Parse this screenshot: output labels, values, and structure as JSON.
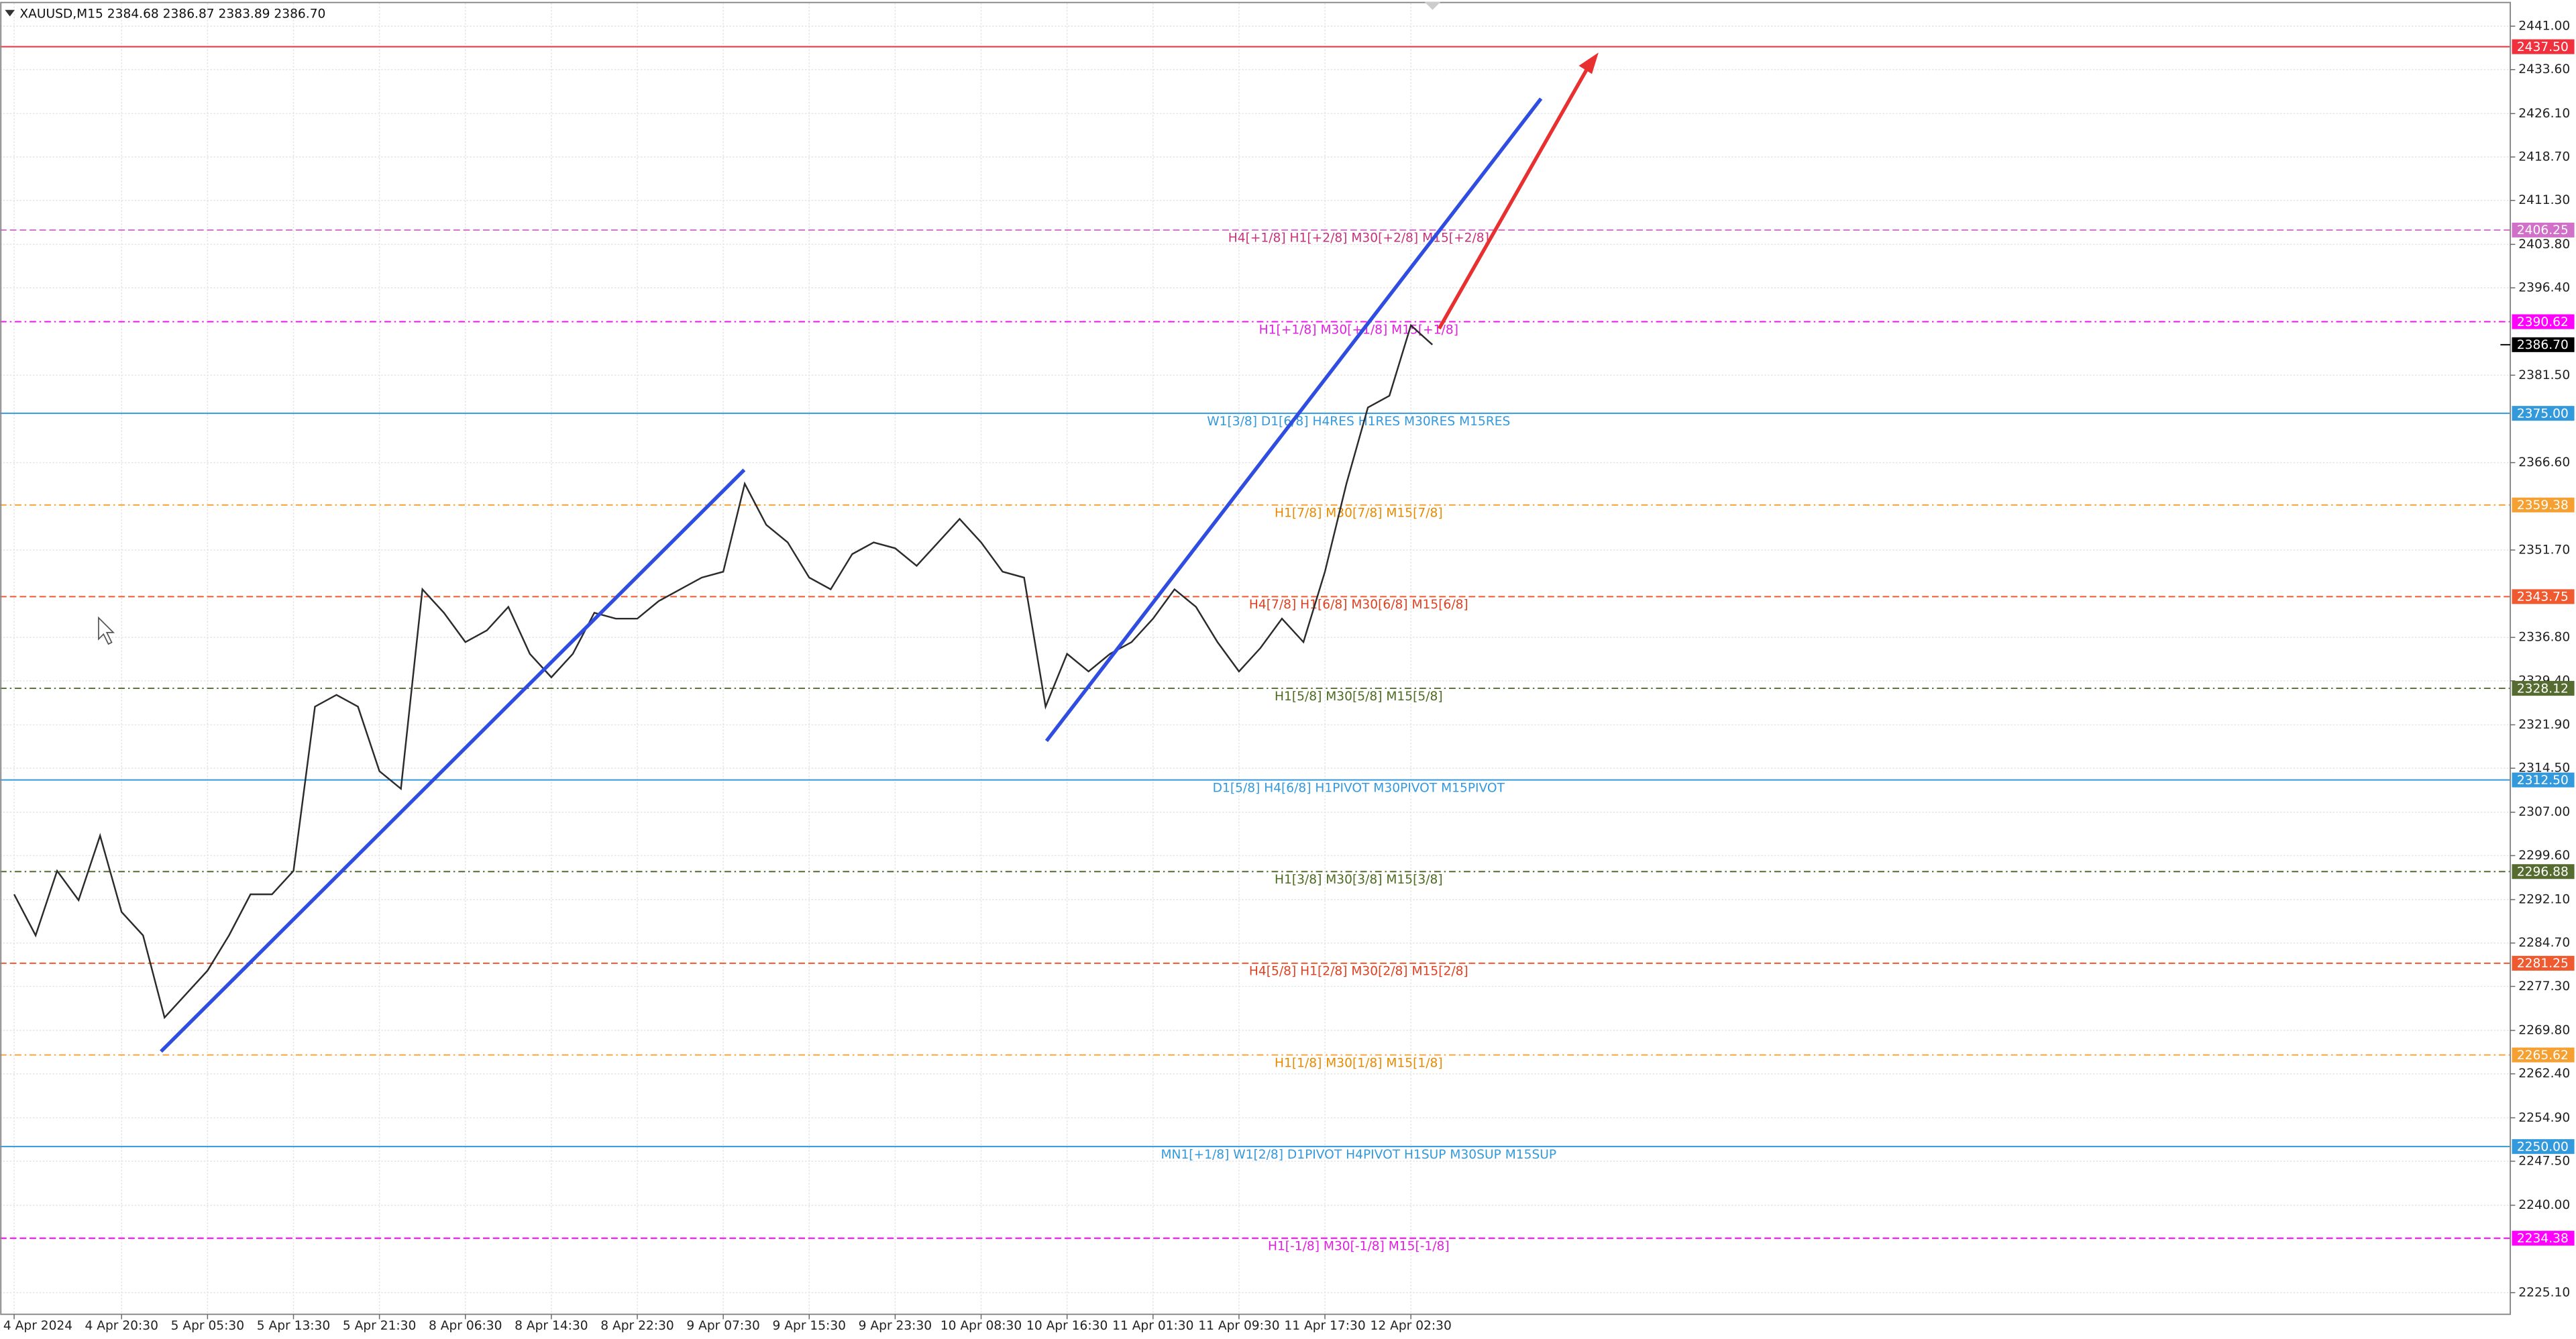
{
  "chart_data": {
    "type": "line",
    "title": "XAUUSD,M15  2384.68 2386.87 2383.89 2386.70",
    "color": "#2b2b2b",
    "grid": true,
    "categories": [
      "4 Apr 2024",
      null,
      null,
      null,
      null,
      "4 Apr 20:30",
      null,
      null,
      null,
      "5 Apr 05:30",
      null,
      null,
      null,
      "5 Apr 13:30",
      null,
      null,
      null,
      "5 Apr 21:30",
      null,
      null,
      null,
      "8 Apr 06:30",
      null,
      null,
      null,
      "8 Apr 14:30",
      null,
      null,
      null,
      "8 Apr 22:30",
      null,
      null,
      null,
      "9 Apr 07:30",
      null,
      null,
      null,
      "9 Apr 15:30",
      null,
      null,
      null,
      "9 Apr 23:30",
      null,
      null,
      null,
      "10 Apr 08:30",
      null,
      null,
      null,
      "10 Apr 16:30",
      null,
      null,
      null,
      "11 Apr 01:30",
      null,
      null,
      null,
      "11 Apr 09:30",
      null,
      null,
      null,
      "11 Apr 17:30",
      null,
      null,
      null,
      "12 Apr 02:30",
      null
    ],
    "values": [
      2293,
      2286,
      2297,
      2292,
      2303,
      2290,
      2286,
      2272,
      2276,
      2280,
      2286,
      2293,
      2293,
      2297,
      2325,
      2327,
      2325,
      2314,
      2311,
      2345,
      2341,
      2336,
      2338,
      2342,
      2334,
      2330,
      2334,
      2341,
      2340,
      2340,
      2343,
      2345,
      2347,
      2348,
      2363,
      2356,
      2353,
      2347,
      2345,
      2351,
      2353,
      2352,
      2349,
      2353,
      2357,
      2353,
      2348,
      2347,
      2325,
      2334,
      2331,
      2334,
      2336,
      2340,
      2345,
      2342,
      2336,
      2331,
      2335,
      2340,
      2336,
      2348,
      2363,
      2376,
      2378,
      2390,
      2386.7
    ],
    "ylim": [
      2221.4,
      2444.9
    ],
    "yticks": [
      {
        "value": 2441,
        "label": "2441.00"
      },
      {
        "value": 2433.6,
        "label": "2433.60"
      },
      {
        "value": 2426.1,
        "label": "2426.10"
      },
      {
        "value": 2418.7,
        "label": "2418.70"
      },
      {
        "value": 2411.3,
        "label": "2411.30"
      },
      {
        "value": 2403.8,
        "label": "2403.80"
      },
      {
        "value": 2396.4,
        "label": "2396.40"
      },
      {
        "value": 2381.5,
        "label": "2381.50"
      },
      {
        "value": 2366.6,
        "label": "2366.60"
      },
      {
        "value": 2351.7,
        "label": "2351.70"
      },
      {
        "value": 2336.8,
        "label": "2336.80"
      },
      {
        "value": 2329.4,
        "label": "2329.40"
      },
      {
        "value": 2321.9,
        "label": "2321.90"
      },
      {
        "value": 2314.5,
        "label": "2314.50"
      },
      {
        "value": 2307,
        "label": "2307.00"
      },
      {
        "value": 2299.6,
        "label": "2299.60"
      },
      {
        "value": 2292.1,
        "label": "2292.10"
      },
      {
        "value": 2284.7,
        "label": "2284.70"
      },
      {
        "value": 2277.3,
        "label": "2277.30"
      },
      {
        "value": 2269.8,
        "label": "2269.80"
      },
      {
        "value": 2262.4,
        "label": "2262.40"
      },
      {
        "value": 2254.9,
        "label": "2254.90"
      },
      {
        "value": 2247.5,
        "label": "2247.50"
      },
      {
        "value": 2240,
        "label": "2240.00"
      },
      {
        "value": 2225.1,
        "label": "2225.10"
      }
    ],
    "levels": [
      {
        "price": {
          "value": 2437.5,
          "label": "2437.50"
        },
        "color": "#f0303c",
        "dash": "none"
      },
      {
        "price": {
          "value": 2406.25,
          "label": "2406.25"
        },
        "text": "H4[+1/8] H1[+2/8] M30[+2/8] M15[+2/8]",
        "color": "#d070c8",
        "text_color": "#c8327a",
        "dash": "4 2"
      },
      {
        "price": {
          "value": 2390.62,
          "label": "2390.62"
        },
        "text": "H1[+1/8] M30[+1/8] M15[+1/8]",
        "color": "#ff00ff",
        "text_color": "#e020e0",
        "dash": "4 2 1 2"
      },
      {
        "price": {
          "value": 2375,
          "label": "2375.00"
        },
        "text": "W1[3/8] D1[6/8] H4RES H1RES M30RES M15RES",
        "color": "#3399dd",
        "text_color": "#3399dd",
        "dash": "none"
      },
      {
        "price": {
          "value": 2359.38,
          "label": "2359.38"
        },
        "text": "H1[7/8] M30[7/8] M15[7/8]",
        "color": "#f5a030",
        "text_color": "#e88a00",
        "dash": "4 2 1 2"
      },
      {
        "price": {
          "value": 2343.75,
          "label": "2343.75"
        },
        "text": "H4[7/8] H1[6/8] M30[6/8] M15[6/8]",
        "color": "#f05a30",
        "text_color": "#e04020",
        "dash": "4 2"
      },
      {
        "price": {
          "value": 2328.12,
          "label": "2328.12"
        },
        "text": "H1[5/8] M30[5/8] M15[5/8]",
        "color": "#556b2f",
        "text_color": "#4b6b1f",
        "dash": "4 2 1 2"
      },
      {
        "price": {
          "value": 2312.5,
          "label": "2312.50"
        },
        "text": "D1[5/8] H4[6/8] H1PIVOT M30PIVOT M15PIVOT",
        "color": "#3399dd",
        "text_color": "#3399dd",
        "dash": "none"
      },
      {
        "price": {
          "value": 2296.88,
          "label": "2296.88"
        },
        "text": "H1[3/8] M30[3/8] M15[3/8]",
        "color": "#556b2f",
        "text_color": "#4b6b1f",
        "dash": "4 2 1 2"
      },
      {
        "price": {
          "value": 2281.25,
          "label": "2281.25"
        },
        "text": "H4[5/8] H1[2/8] M30[2/8] M15[2/8]",
        "color": "#f05a30",
        "text_color": "#e04020",
        "dash": "4 2"
      },
      {
        "price": {
          "value": 2265.62,
          "label": "2265.62"
        },
        "text": "H1[1/8] M30[1/8] M15[1/8]",
        "color": "#f5a030",
        "text_color": "#e88a00",
        "dash": "4 2 1 2"
      },
      {
        "price": {
          "value": 2250,
          "label": "2250.00"
        },
        "text": "MN1[+1/8] W1[2/8] D1PIVOT H4PIVOT H1SUP M30SUP M15SUP",
        "color": "#3399dd",
        "text_color": "#3399dd",
        "dash": "none"
      },
      {
        "price": {
          "value": 2234.38,
          "label": "2234.38"
        },
        "text": "H1[-1/8] M30[-1/8] M15[-1/8]",
        "color": "#ff00ff",
        "text_color": "#e020e0",
        "dash": "4 2"
      }
    ],
    "last_price": {
      "value": 2386.7,
      "label": "2386.70"
    }
  }
}
